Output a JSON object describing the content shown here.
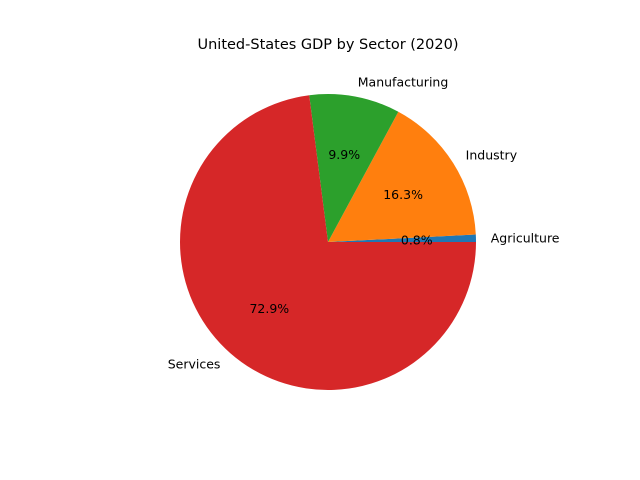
{
  "chart_data": {
    "type": "pie",
    "title": "United-States GDP by Sector (2020)",
    "labels": [
      "Agriculture",
      "Industry",
      "Manufacturing",
      "Services"
    ],
    "values": [
      0.8,
      16.3,
      9.9,
      72.9
    ],
    "pct_labels": [
      "0.8%",
      "16.3%",
      "9.9%",
      "72.9%"
    ],
    "colors": [
      "#1f77b4",
      "#ff7f0e",
      "#2ca02c",
      "#d62728"
    ],
    "start_angle_deg": 0,
    "direction": "counterclockwise",
    "legend": "none"
  }
}
